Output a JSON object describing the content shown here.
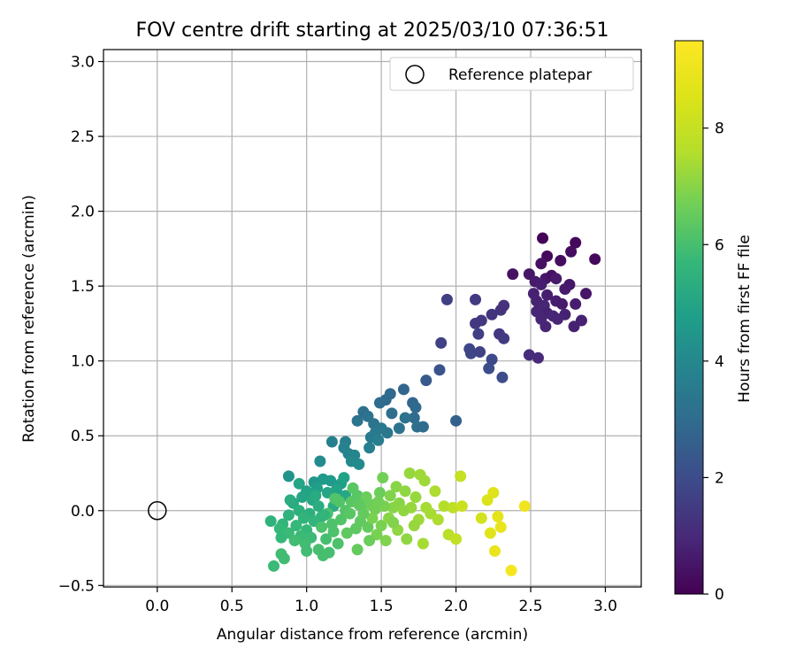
{
  "chart_data": {
    "type": "scatter",
    "title": "FOV centre drift starting at 2025/03/10 07:36:51",
    "xlabel": "Angular distance from reference (arcmin)",
    "ylabel": "Rotation from reference (arcmin)",
    "xlim": [
      -0.36,
      3.24
    ],
    "ylim": [
      -0.51,
      3.08
    ],
    "xticks": [
      "0.0",
      "0.5",
      "1.0",
      "1.5",
      "2.0",
      "2.5",
      "3.0"
    ],
    "yticks": [
      "−0.5",
      "0.0",
      "0.5",
      "1.0",
      "1.5",
      "2.0",
      "2.5",
      "3.0"
    ],
    "grid": true,
    "legend": {
      "position": "top-right",
      "label": "Reference platepar"
    },
    "reference_point": {
      "x": 0.0,
      "y": 0.0
    },
    "colorbar": {
      "label": "Hours from first FF file",
      "range": [
        0,
        9.5
      ],
      "ticks": [
        "0",
        "2",
        "4",
        "6",
        "8"
      ],
      "colormap": "viridis"
    },
    "points": [
      {
        "x": 2.58,
        "y": 1.82,
        "h": 0.1
      },
      {
        "x": 2.8,
        "y": 1.79,
        "h": 0.2
      },
      {
        "x": 2.61,
        "y": 1.7,
        "h": 0.2
      },
      {
        "x": 2.77,
        "y": 1.73,
        "h": 0.3
      },
      {
        "x": 2.93,
        "y": 1.68,
        "h": 0.2
      },
      {
        "x": 2.7,
        "y": 1.67,
        "h": 0.3
      },
      {
        "x": 2.57,
        "y": 1.65,
        "h": 0.4
      },
      {
        "x": 2.38,
        "y": 1.58,
        "h": 0.4
      },
      {
        "x": 2.49,
        "y": 1.58,
        "h": 0.5
      },
      {
        "x": 2.6,
        "y": 1.55,
        "h": 0.5
      },
      {
        "x": 2.64,
        "y": 1.57,
        "h": 0.4
      },
      {
        "x": 2.67,
        "y": 1.55,
        "h": 0.6
      },
      {
        "x": 2.53,
        "y": 1.53,
        "h": 0.6
      },
      {
        "x": 2.57,
        "y": 1.51,
        "h": 0.7
      },
      {
        "x": 2.76,
        "y": 1.51,
        "h": 0.5
      },
      {
        "x": 2.73,
        "y": 1.48,
        "h": 0.6
      },
      {
        "x": 2.87,
        "y": 1.45,
        "h": 0.5
      },
      {
        "x": 2.52,
        "y": 1.45,
        "h": 0.8
      },
      {
        "x": 2.61,
        "y": 1.44,
        "h": 0.7
      },
      {
        "x": 2.54,
        "y": 1.4,
        "h": 0.8
      },
      {
        "x": 2.67,
        "y": 1.4,
        "h": 0.7
      },
      {
        "x": 2.71,
        "y": 1.38,
        "h": 0.6
      },
      {
        "x": 2.8,
        "y": 1.38,
        "h": 0.7
      },
      {
        "x": 2.59,
        "y": 1.37,
        "h": 0.9
      },
      {
        "x": 2.54,
        "y": 1.33,
        "h": 0.9
      },
      {
        "x": 2.61,
        "y": 1.32,
        "h": 0.8
      },
      {
        "x": 2.65,
        "y": 1.3,
        "h": 0.9
      },
      {
        "x": 2.73,
        "y": 1.31,
        "h": 0.8
      },
      {
        "x": 2.57,
        "y": 1.28,
        "h": 0.9
      },
      {
        "x": 2.68,
        "y": 1.28,
        "h": 0.9
      },
      {
        "x": 2.84,
        "y": 1.27,
        "h": 0.8
      },
      {
        "x": 2.6,
        "y": 1.23,
        "h": 0.9
      },
      {
        "x": 2.79,
        "y": 1.23,
        "h": 0.8
      },
      {
        "x": 2.55,
        "y": 1.02,
        "h": 1.0
      },
      {
        "x": 2.49,
        "y": 1.04,
        "h": 1.1
      },
      {
        "x": 2.3,
        "y": 1.34,
        "h": 1.3
      },
      {
        "x": 2.32,
        "y": 1.37,
        "h": 1.2
      },
      {
        "x": 2.24,
        "y": 1.31,
        "h": 1.3
      },
      {
        "x": 2.17,
        "y": 1.27,
        "h": 1.4
      },
      {
        "x": 2.13,
        "y": 1.25,
        "h": 1.4
      },
      {
        "x": 2.13,
        "y": 1.41,
        "h": 1.5
      },
      {
        "x": 1.94,
        "y": 1.41,
        "h": 1.6
      },
      {
        "x": 2.29,
        "y": 1.18,
        "h": 1.4
      },
      {
        "x": 2.32,
        "y": 1.15,
        "h": 1.5
      },
      {
        "x": 2.15,
        "y": 1.18,
        "h": 1.6
      },
      {
        "x": 1.9,
        "y": 1.12,
        "h": 1.7
      },
      {
        "x": 2.09,
        "y": 1.08,
        "h": 1.8
      },
      {
        "x": 2.1,
        "y": 1.05,
        "h": 1.8
      },
      {
        "x": 2.16,
        "y": 1.06,
        "h": 1.7
      },
      {
        "x": 2.24,
        "y": 1.01,
        "h": 1.9
      },
      {
        "x": 2.22,
        "y": 0.95,
        "h": 2.0
      },
      {
        "x": 2.31,
        "y": 0.89,
        "h": 2.0
      },
      {
        "x": 1.89,
        "y": 0.94,
        "h": 2.2
      },
      {
        "x": 1.8,
        "y": 0.87,
        "h": 2.4
      },
      {
        "x": 2.0,
        "y": 0.6,
        "h": 2.6
      },
      {
        "x": 1.65,
        "y": 0.81,
        "h": 2.8
      },
      {
        "x": 1.56,
        "y": 0.78,
        "h": 2.9
      },
      {
        "x": 1.53,
        "y": 0.74,
        "h": 2.9
      },
      {
        "x": 1.49,
        "y": 0.72,
        "h": 3.0
      },
      {
        "x": 1.71,
        "y": 0.72,
        "h": 2.8
      },
      {
        "x": 1.73,
        "y": 0.69,
        "h": 2.9
      },
      {
        "x": 1.38,
        "y": 0.66,
        "h": 3.1
      },
      {
        "x": 1.57,
        "y": 0.65,
        "h": 3.1
      },
      {
        "x": 1.72,
        "y": 0.62,
        "h": 3.0
      },
      {
        "x": 1.66,
        "y": 0.62,
        "h": 3.2
      },
      {
        "x": 1.41,
        "y": 0.63,
        "h": 3.2
      },
      {
        "x": 1.34,
        "y": 0.6,
        "h": 3.3
      },
      {
        "x": 1.45,
        "y": 0.58,
        "h": 3.3
      },
      {
        "x": 1.74,
        "y": 0.56,
        "h": 3.1
      },
      {
        "x": 1.78,
        "y": 0.56,
        "h": 3.0
      },
      {
        "x": 1.62,
        "y": 0.55,
        "h": 3.3
      },
      {
        "x": 1.5,
        "y": 0.55,
        "h": 3.4
      },
      {
        "x": 1.54,
        "y": 0.52,
        "h": 3.4
      },
      {
        "x": 1.46,
        "y": 0.52,
        "h": 3.5
      },
      {
        "x": 1.43,
        "y": 0.49,
        "h": 3.5
      },
      {
        "x": 1.48,
        "y": 0.47,
        "h": 3.6
      },
      {
        "x": 1.26,
        "y": 0.46,
        "h": 3.6
      },
      {
        "x": 1.17,
        "y": 0.46,
        "h": 3.7
      },
      {
        "x": 1.42,
        "y": 0.42,
        "h": 3.7
      },
      {
        "x": 1.25,
        "y": 0.42,
        "h": 3.8
      },
      {
        "x": 1.28,
        "y": 0.38,
        "h": 3.8
      },
      {
        "x": 1.32,
        "y": 0.37,
        "h": 3.9
      },
      {
        "x": 1.3,
        "y": 0.33,
        "h": 4.0
      },
      {
        "x": 1.09,
        "y": 0.33,
        "h": 4.1
      },
      {
        "x": 1.35,
        "y": 0.31,
        "h": 4.1
      },
      {
        "x": 0.88,
        "y": 0.23,
        "h": 4.4
      },
      {
        "x": 1.05,
        "y": 0.19,
        "h": 4.5
      },
      {
        "x": 1.11,
        "y": 0.21,
        "h": 4.6
      },
      {
        "x": 1.16,
        "y": 0.2,
        "h": 4.6
      },
      {
        "x": 1.23,
        "y": 0.18,
        "h": 4.8
      },
      {
        "x": 1.07,
        "y": 0.15,
        "h": 4.8
      },
      {
        "x": 1.0,
        "y": 0.13,
        "h": 4.9
      },
      {
        "x": 1.2,
        "y": 0.14,
        "h": 4.9
      },
      {
        "x": 1.14,
        "y": 0.12,
        "h": 5.0
      },
      {
        "x": 0.97,
        "y": 0.09,
        "h": 5.0
      },
      {
        "x": 1.04,
        "y": 0.07,
        "h": 5.1
      },
      {
        "x": 1.26,
        "y": 0.1,
        "h": 5.1
      },
      {
        "x": 0.91,
        "y": 0.05,
        "h": 5.2
      },
      {
        "x": 1.08,
        "y": 0.03,
        "h": 5.3
      },
      {
        "x": 1.18,
        "y": 0.03,
        "h": 5.3
      },
      {
        "x": 0.95,
        "y": 0.0,
        "h": 5.4
      },
      {
        "x": 1.02,
        "y": -0.02,
        "h": 5.4
      },
      {
        "x": 0.88,
        "y": -0.03,
        "h": 5.5
      },
      {
        "x": 0.76,
        "y": -0.07,
        "h": 5.5
      },
      {
        "x": 1.1,
        "y": -0.04,
        "h": 5.5
      },
      {
        "x": 0.98,
        "y": -0.05,
        "h": 5.6
      },
      {
        "x": 1.05,
        "y": -0.07,
        "h": 5.6
      },
      {
        "x": 0.84,
        "y": -0.09,
        "h": 5.6
      },
      {
        "x": 0.93,
        "y": -0.1,
        "h": 5.7
      },
      {
        "x": 0.82,
        "y": -0.12,
        "h": 5.7
      },
      {
        "x": 1.0,
        "y": -0.13,
        "h": 5.7
      },
      {
        "x": 0.88,
        "y": -0.15,
        "h": 5.8
      },
      {
        "x": 0.96,
        "y": -0.17,
        "h": 5.8
      },
      {
        "x": 1.03,
        "y": -0.18,
        "h": 5.8
      },
      {
        "x": 0.83,
        "y": -0.18,
        "h": 5.7
      },
      {
        "x": 0.92,
        "y": -0.2,
        "h": 5.9
      },
      {
        "x": 0.99,
        "y": -0.22,
        "h": 5.9
      },
      {
        "x": 1.0,
        "y": -0.27,
        "h": 5.9
      },
      {
        "x": 0.83,
        "y": -0.29,
        "h": 5.9
      },
      {
        "x": 0.85,
        "y": -0.32,
        "h": 5.9
      },
      {
        "x": 0.78,
        "y": -0.37,
        "h": 5.8
      },
      {
        "x": 1.11,
        "y": -0.3,
        "h": 6.0
      },
      {
        "x": 1.15,
        "y": -0.28,
        "h": 6.0
      },
      {
        "x": 1.08,
        "y": -0.26,
        "h": 6.0
      },
      {
        "x": 1.21,
        "y": -0.22,
        "h": 6.1
      },
      {
        "x": 1.13,
        "y": -0.19,
        "h": 6.0
      },
      {
        "x": 1.1,
        "y": -0.11,
        "h": 6.1
      },
      {
        "x": 1.17,
        "y": -0.09,
        "h": 6.1
      },
      {
        "x": 1.23,
        "y": -0.06,
        "h": 6.2
      },
      {
        "x": 1.14,
        "y": -0.02,
        "h": 6.1
      },
      {
        "x": 1.26,
        "y": 0.0,
        "h": 6.2
      },
      {
        "x": 1.19,
        "y": 0.08,
        "h": 6.2
      },
      {
        "x": 1.31,
        "y": 0.15,
        "h": 6.3
      },
      {
        "x": 1.34,
        "y": 0.1,
        "h": 6.3
      },
      {
        "x": 1.29,
        "y": -0.02,
        "h": 6.3
      },
      {
        "x": 1.36,
        "y": -0.07,
        "h": 6.4
      },
      {
        "x": 1.33,
        "y": -0.12,
        "h": 6.4
      },
      {
        "x": 1.27,
        "y": -0.15,
        "h": 6.4
      },
      {
        "x": 1.41,
        "y": -0.11,
        "h": 6.5
      },
      {
        "x": 1.34,
        "y": -0.26,
        "h": 6.5
      },
      {
        "x": 1.38,
        "y": 0.04,
        "h": 6.5
      },
      {
        "x": 1.43,
        "y": 0.04,
        "h": 6.6
      },
      {
        "x": 1.49,
        "y": 0.12,
        "h": 6.6
      },
      {
        "x": 1.51,
        "y": 0.22,
        "h": 6.7
      },
      {
        "x": 1.46,
        "y": 0.01,
        "h": 6.7
      },
      {
        "x": 1.44,
        "y": -0.05,
        "h": 6.8
      },
      {
        "x": 1.5,
        "y": -0.1,
        "h": 6.8
      },
      {
        "x": 1.47,
        "y": -0.16,
        "h": 6.8
      },
      {
        "x": 1.53,
        "y": -0.2,
        "h": 6.9
      },
      {
        "x": 1.56,
        "y": 0.1,
        "h": 6.9
      },
      {
        "x": 1.6,
        "y": 0.16,
        "h": 7.0
      },
      {
        "x": 1.58,
        "y": 0.02,
        "h": 7.0
      },
      {
        "x": 1.55,
        "y": -0.05,
        "h": 7.0
      },
      {
        "x": 1.61,
        "y": -0.13,
        "h": 7.1
      },
      {
        "x": 1.67,
        "y": -0.19,
        "h": 7.1
      },
      {
        "x": 1.66,
        "y": 0.13,
        "h": 7.1
      },
      {
        "x": 1.69,
        "y": 0.25,
        "h": 7.2
      },
      {
        "x": 1.73,
        "y": 0.09,
        "h": 7.2
      },
      {
        "x": 1.7,
        "y": 0.02,
        "h": 7.2
      },
      {
        "x": 1.75,
        "y": -0.06,
        "h": 7.3
      },
      {
        "x": 1.79,
        "y": 0.2,
        "h": 7.3
      },
      {
        "x": 1.76,
        "y": 0.24,
        "h": 7.3
      },
      {
        "x": 1.8,
        "y": 0.02,
        "h": 7.4
      },
      {
        "x": 1.83,
        "y": -0.02,
        "h": 7.4
      },
      {
        "x": 1.78,
        "y": -0.22,
        "h": 7.4
      },
      {
        "x": 1.86,
        "y": 0.13,
        "h": 7.5
      },
      {
        "x": 1.88,
        "y": -0.06,
        "h": 7.5
      },
      {
        "x": 1.92,
        "y": 0.03,
        "h": 7.6
      },
      {
        "x": 1.95,
        "y": -0.16,
        "h": 7.7
      },
      {
        "x": 1.98,
        "y": 0.02,
        "h": 7.8
      },
      {
        "x": 2.0,
        "y": -0.19,
        "h": 7.9
      },
      {
        "x": 2.03,
        "y": 0.23,
        "h": 8.0
      },
      {
        "x": 2.04,
        "y": 0.03,
        "h": 8.1
      },
      {
        "x": 2.17,
        "y": -0.05,
        "h": 8.3
      },
      {
        "x": 2.21,
        "y": 0.07,
        "h": 8.5
      },
      {
        "x": 2.25,
        "y": 0.12,
        "h": 8.6
      },
      {
        "x": 2.23,
        "y": -0.15,
        "h": 8.7
      },
      {
        "x": 2.28,
        "y": -0.04,
        "h": 8.8
      },
      {
        "x": 2.3,
        "y": -0.11,
        "h": 8.9
      },
      {
        "x": 2.26,
        "y": -0.27,
        "h": 8.9
      },
      {
        "x": 2.46,
        "y": 0.03,
        "h": 9.1
      },
      {
        "x": 2.37,
        "y": -0.4,
        "h": 9.3
      },
      {
        "x": 1.4,
        "y": 0.09,
        "h": 6.6
      },
      {
        "x": 1.22,
        "y": 0.06,
        "h": 6.2
      },
      {
        "x": 1.06,
        "y": 0.1,
        "h": 5.2
      },
      {
        "x": 0.89,
        "y": 0.07,
        "h": 5.3
      },
      {
        "x": 1.62,
        "y": 0.05,
        "h": 7.0
      },
      {
        "x": 1.52,
        "y": 0.03,
        "h": 6.8
      },
      {
        "x": 1.38,
        "y": -0.02,
        "h": 6.5
      },
      {
        "x": 1.3,
        "y": 0.06,
        "h": 6.3
      },
      {
        "x": 1.18,
        "y": -0.14,
        "h": 6.1
      },
      {
        "x": 1.42,
        "y": -0.2,
        "h": 6.6
      },
      {
        "x": 1.25,
        "y": 0.22,
        "h": 4.9
      },
      {
        "x": 1.12,
        "y": -0.03,
        "h": 5.6
      },
      {
        "x": 0.95,
        "y": 0.18,
        "h": 5.0
      },
      {
        "x": 1.58,
        "y": -0.08,
        "h": 6.9
      },
      {
        "x": 1.72,
        "y": -0.1,
        "h": 7.2
      },
      {
        "x": 1.48,
        "y": 0.06,
        "h": 6.7
      },
      {
        "x": 1.65,
        "y": 0.0,
        "h": 7.1
      },
      {
        "x": 1.35,
        "y": 0.04,
        "h": 6.4
      }
    ]
  }
}
